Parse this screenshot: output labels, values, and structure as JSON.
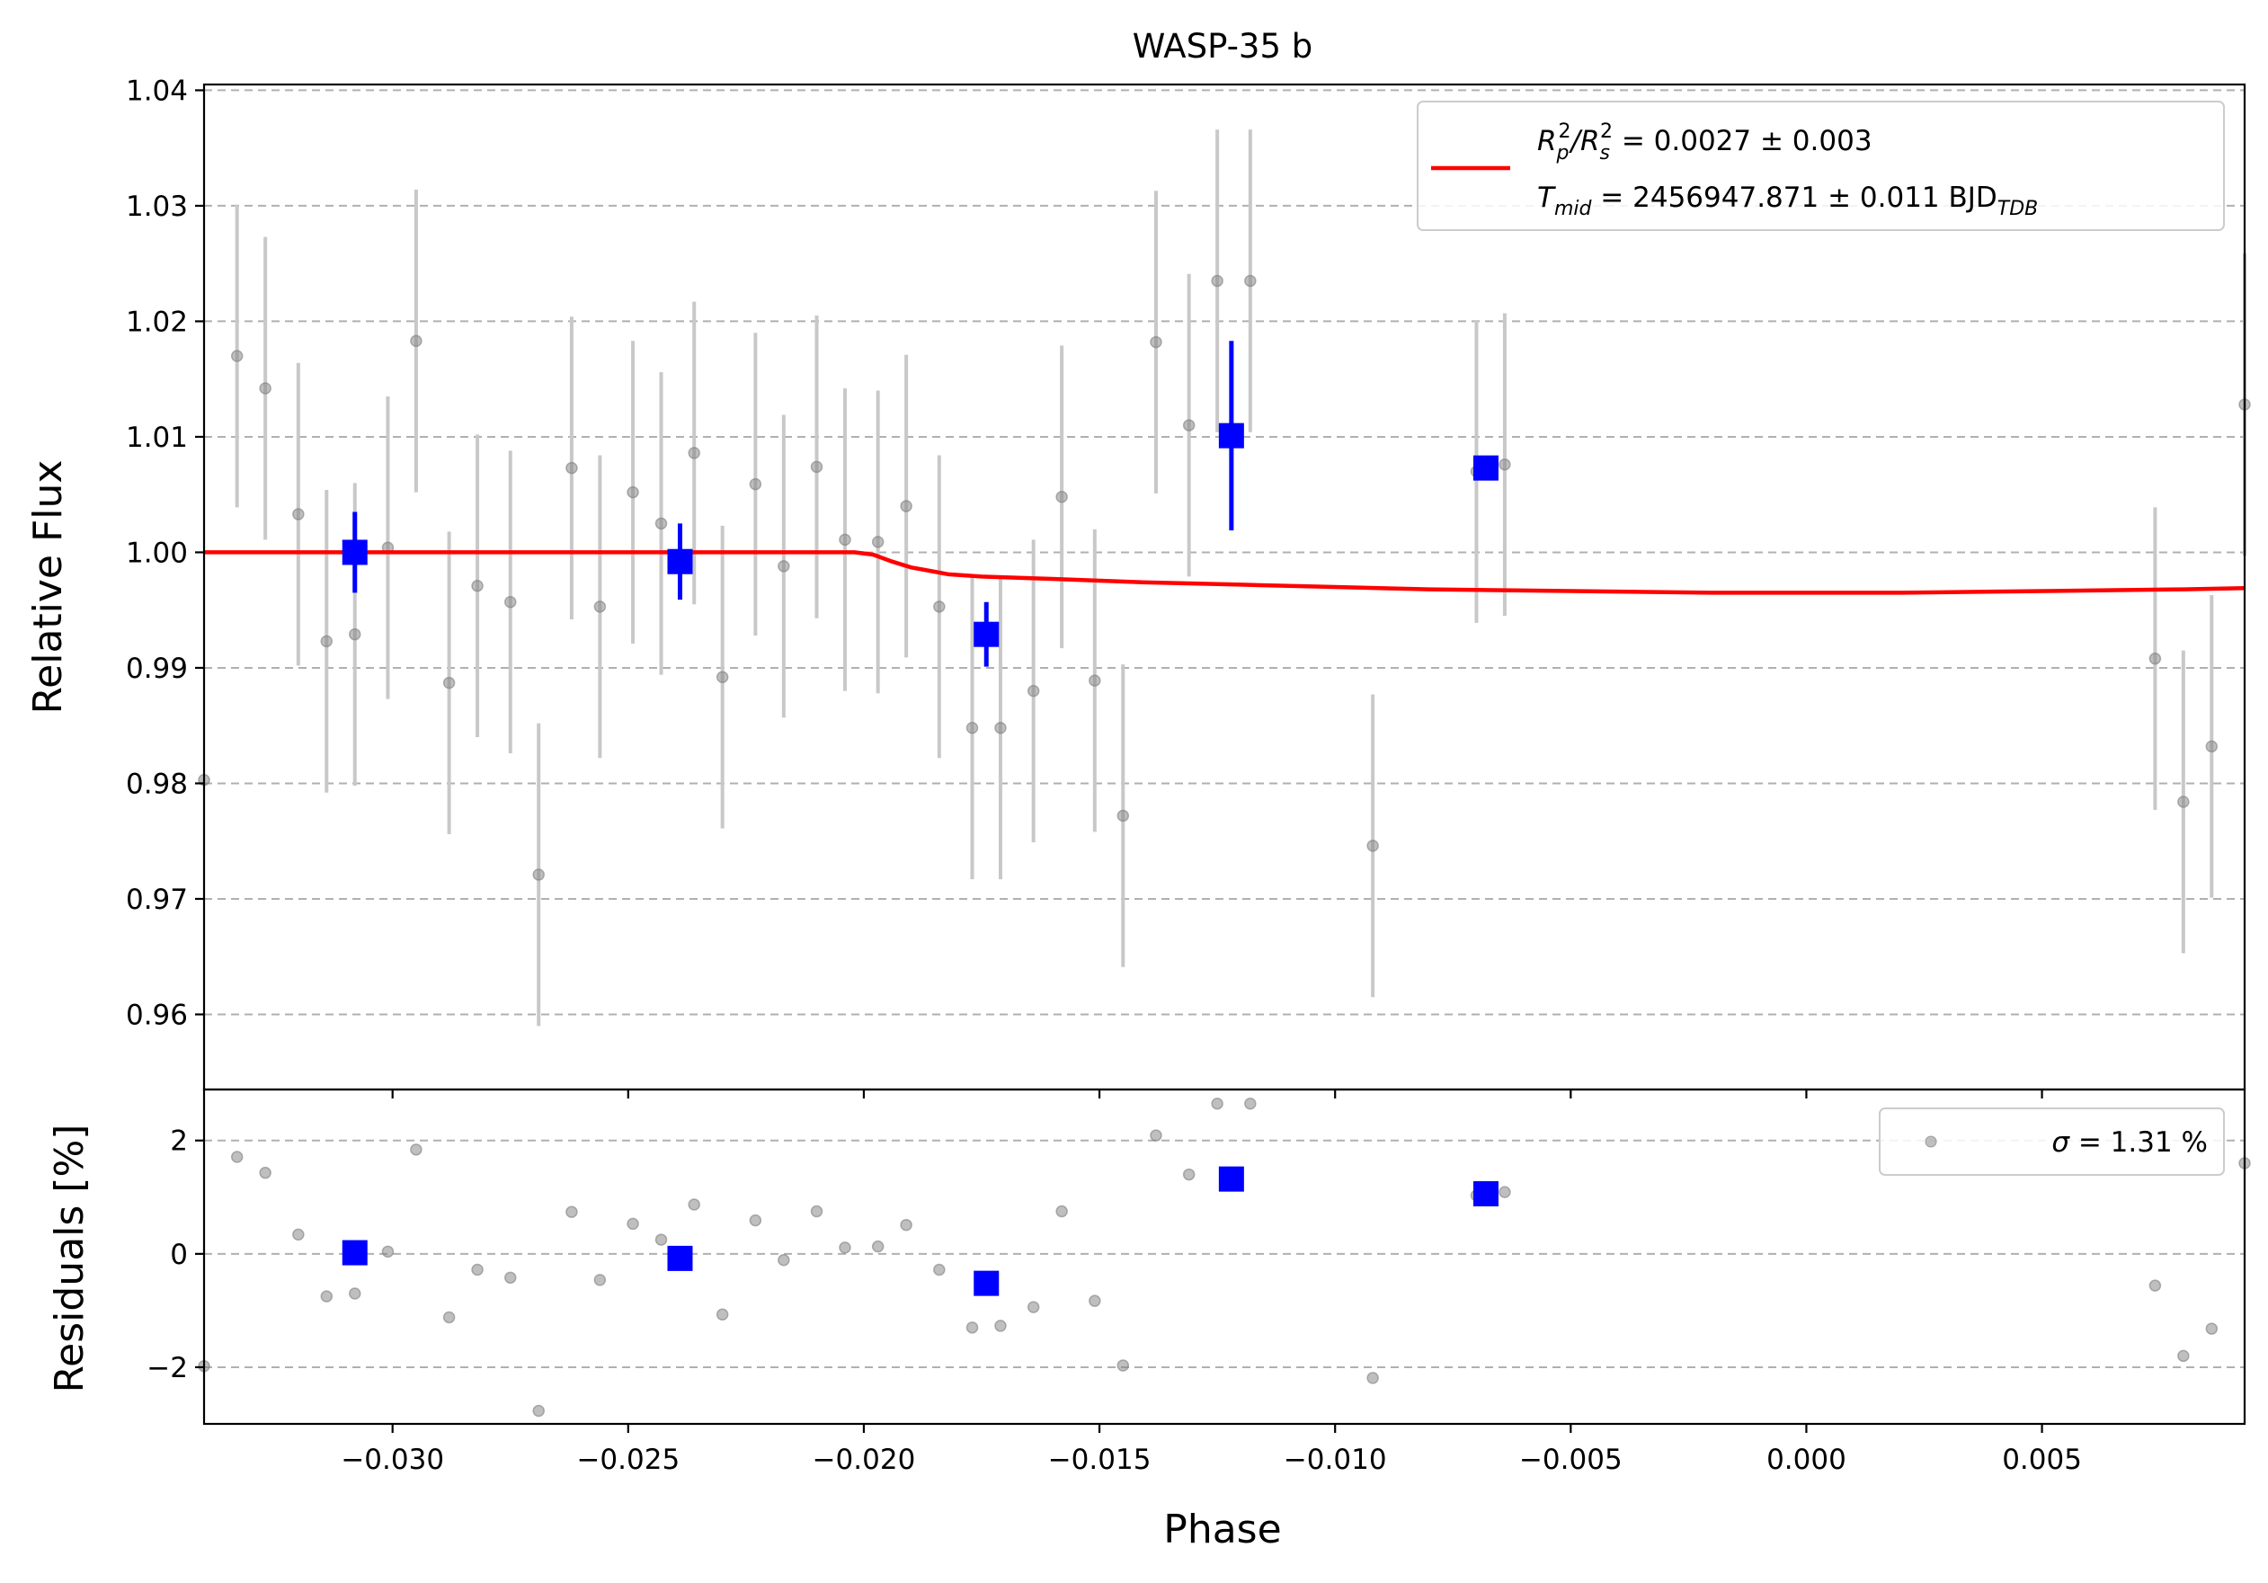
{
  "chart_data": [
    {
      "type": "scatter",
      "title": "WASP-35 b",
      "ylabel": "Relative Flux",
      "xlabel": "",
      "xlim": [
        -0.034,
        0.0093
      ],
      "ylim": [
        0.9535,
        1.0405
      ],
      "xticks": [
        -0.03,
        -0.025,
        -0.02,
        -0.015,
        -0.01,
        -0.005,
        0.0,
        0.005
      ],
      "yticks": [
        0.96,
        0.97,
        0.98,
        0.99,
        1.0,
        1.01,
        1.02,
        1.03,
        1.04
      ],
      "ytick_labels": [
        "0.96",
        "0.97",
        "0.98",
        "0.99",
        "1.00",
        "1.01",
        "1.02",
        "1.03",
        "1.04"
      ],
      "grid": "horizontal dashed",
      "legend_placement": "top-right",
      "legend": {
        "label_line1_lead": "R",
        "label_line1_sub1": "p",
        "label_line1_sup1": "2",
        "label_line1_mid": "/R",
        "label_line1_sub2": "s",
        "label_line1_sup2": "2",
        "label_line1_value": " = 0.0027 ± 0.003",
        "label_line2_lead": "T",
        "label_line2_sub": "mid",
        "label_line2_value": " = 2456947.871 ± 0.011 BJD",
        "label_line2_unit_sub": "TDB"
      },
      "colors": {
        "raw": "#808080",
        "raw_err": "#c8c8c8",
        "binned": "#0000ff",
        "model": "#ff0000"
      },
      "series": [
        {
          "kind": "raw",
          "points": [
            {
              "x": -0.034,
              "y": 0.9803,
              "e": 0.0
            },
            {
              "x": -0.0333,
              "y": 1.017,
              "e": 0.0131
            },
            {
              "x": -0.0327,
              "y": 1.0142,
              "e": 0.0131
            },
            {
              "x": -0.032,
              "y": 1.0033,
              "e": 0.0131
            },
            {
              "x": -0.0314,
              "y": 0.9923,
              "e": 0.0131
            },
            {
              "x": -0.0308,
              "y": 0.9929,
              "e": 0.0131
            },
            {
              "x": -0.0301,
              "y": 1.0004,
              "e": 0.0131
            },
            {
              "x": -0.0295,
              "y": 1.0183,
              "e": 0.0131
            },
            {
              "x": -0.0288,
              "y": 0.9887,
              "e": 0.0131
            },
            {
              "x": -0.0282,
              "y": 0.9971,
              "e": 0.0131
            },
            {
              "x": -0.0275,
              "y": 0.9957,
              "e": 0.0131
            },
            {
              "x": -0.0269,
              "y": 0.9721,
              "e": 0.0131
            },
            {
              "x": -0.0262,
              "y": 1.0073,
              "e": 0.0131
            },
            {
              "x": -0.0256,
              "y": 0.9953,
              "e": 0.0131
            },
            {
              "x": -0.0249,
              "y": 1.0052,
              "e": 0.0131
            },
            {
              "x": -0.0243,
              "y": 1.0025,
              "e": 0.0131
            },
            {
              "x": -0.0236,
              "y": 1.0086,
              "e": 0.0131
            },
            {
              "x": -0.023,
              "y": 0.9892,
              "e": 0.0131
            },
            {
              "x": -0.0223,
              "y": 1.0059,
              "e": 0.0131
            },
            {
              "x": -0.0217,
              "y": 0.9988,
              "e": 0.0131
            },
            {
              "x": -0.021,
              "y": 1.0074,
              "e": 0.0131
            },
            {
              "x": -0.0204,
              "y": 1.0011,
              "e": 0.0131
            },
            {
              "x": -0.0197,
              "y": 1.0009,
              "e": 0.0131
            },
            {
              "x": -0.0191,
              "y": 1.004,
              "e": 0.0131
            },
            {
              "x": -0.0184,
              "y": 0.9953,
              "e": 0.0131
            },
            {
              "x": -0.0177,
              "y": 0.9848,
              "e": 0.0131
            },
            {
              "x": -0.0171,
              "y": 0.9848,
              "e": 0.0131
            },
            {
              "x": -0.0164,
              "y": 0.988,
              "e": 0.0131
            },
            {
              "x": -0.0158,
              "y": 1.0048,
              "e": 0.0131
            },
            {
              "x": -0.0151,
              "y": 0.9889,
              "e": 0.0131
            },
            {
              "x": -0.0145,
              "y": 0.9772,
              "e": 0.0131
            },
            {
              "x": -0.0138,
              "y": 1.0182,
              "e": 0.0131
            },
            {
              "x": -0.0131,
              "y": 1.011,
              "e": 0.0131
            },
            {
              "x": -0.0125,
              "y": 1.0235,
              "e": 0.0131
            },
            {
              "x": -0.0118,
              "y": 1.0235,
              "e": 0.0131
            },
            {
              "x": -0.0092,
              "y": 0.9746,
              "e": 0.0131
            },
            {
              "x": -0.007,
              "y": 1.007,
              "e": 0.0131
            },
            {
              "x": -0.0064,
              "y": 1.0076,
              "e": 0.0131
            },
            {
              "x": 0.0074,
              "y": 0.9908,
              "e": 0.0131
            },
            {
              "x": 0.008,
              "y": 0.9784,
              "e": 0.0131
            },
            {
              "x": 0.0086,
              "y": 0.9832,
              "e": 0.0131
            },
            {
              "x": 0.0093,
              "y": 1.0128,
              "e": 0.0131
            }
          ]
        },
        {
          "kind": "binned",
          "points": [
            {
              "x": -0.0308,
              "y": 1.0,
              "e": 0.0035
            },
            {
              "x": -0.0239,
              "y": 0.9992,
              "e": 0.0033
            },
            {
              "x": -0.0174,
              "y": 0.9929,
              "e": 0.0028
            },
            {
              "x": -0.0122,
              "y": 1.0101,
              "e": 0.0082
            },
            {
              "x": -0.0068,
              "y": 1.0073,
              "e": 0.0
            }
          ]
        },
        {
          "kind": "model",
          "points": [
            [
              -0.034,
              1.0
            ],
            [
              -0.0202,
              1.0
            ],
            [
              -0.0198,
              0.9998
            ],
            [
              -0.0194,
              0.9992
            ],
            [
              -0.019,
              0.9987
            ],
            [
              -0.0186,
              0.9984
            ],
            [
              -0.0182,
              0.9981
            ],
            [
              -0.0175,
              0.9979
            ],
            [
              -0.016,
              0.9977
            ],
            [
              -0.014,
              0.9974
            ],
            [
              -0.012,
              0.9972
            ],
            [
              -0.01,
              0.997
            ],
            [
              -0.008,
              0.9968
            ],
            [
              -0.006,
              0.9967
            ],
            [
              -0.004,
              0.9966
            ],
            [
              -0.002,
              0.9965
            ],
            [
              0.0,
              0.9965
            ],
            [
              0.002,
              0.9965
            ],
            [
              0.004,
              0.9966
            ],
            [
              0.006,
              0.9967
            ],
            [
              0.008,
              0.9968
            ],
            [
              0.0093,
              0.9969
            ]
          ]
        }
      ]
    },
    {
      "type": "scatter",
      "ylabel": "Residuals [%]",
      "xlabel": "Phase",
      "xlim": [
        -0.034,
        0.0093
      ],
      "ylim": [
        -3.0,
        2.9
      ],
      "xticks": [
        -0.03,
        -0.025,
        -0.02,
        -0.015,
        -0.01,
        -0.005,
        0.0,
        0.005
      ],
      "xtick_labels": [
        "−0.030",
        "−0.025",
        "−0.020",
        "−0.015",
        "−0.010",
        "−0.005",
        "0.000",
        "0.005"
      ],
      "yticks": [
        -2,
        0,
        2
      ],
      "ytick_labels": [
        "−2",
        "0",
        "2"
      ],
      "grid": "horizontal dashed",
      "legend_placement": "top-right",
      "legend": {
        "sigma_symbol": "σ",
        "sigma_value": " = 1.31 %"
      },
      "series": [
        {
          "kind": "raw",
          "points": [
            [
              -0.034,
              -1.98
            ],
            [
              -0.0333,
              1.71
            ],
            [
              -0.0327,
              1.43
            ],
            [
              -0.032,
              0.34
            ],
            [
              -0.0314,
              -0.75
            ],
            [
              -0.0308,
              -0.7
            ],
            [
              -0.0301,
              0.04
            ],
            [
              -0.0295,
              1.84
            ],
            [
              -0.0288,
              -1.12
            ],
            [
              -0.0282,
              -0.28
            ],
            [
              -0.0275,
              -0.42
            ],
            [
              -0.0269,
              -2.77
            ],
            [
              -0.0262,
              0.74
            ],
            [
              -0.0256,
              -0.46
            ],
            [
              -0.0249,
              0.53
            ],
            [
              -0.0243,
              0.25
            ],
            [
              -0.0236,
              0.87
            ],
            [
              -0.023,
              -1.07
            ],
            [
              -0.0223,
              0.59
            ],
            [
              -0.0217,
              -0.11
            ],
            [
              -0.021,
              0.75
            ],
            [
              -0.0204,
              0.11
            ],
            [
              -0.0197,
              0.13
            ],
            [
              -0.0191,
              0.51
            ],
            [
              -0.0184,
              -0.28
            ],
            [
              -0.0177,
              -1.3
            ],
            [
              -0.0171,
              -1.27
            ],
            [
              -0.0164,
              -0.94
            ],
            [
              -0.0158,
              0.75
            ],
            [
              -0.0151,
              -0.83
            ],
            [
              -0.0145,
              -1.97
            ],
            [
              -0.0138,
              2.09
            ],
            [
              -0.0131,
              1.4
            ],
            [
              -0.0125,
              2.65
            ],
            [
              -0.0118,
              2.65
            ],
            [
              -0.0092,
              -2.19
            ],
            [
              -0.007,
              1.03
            ],
            [
              -0.0064,
              1.09
            ],
            [
              0.0074,
              -0.56
            ],
            [
              0.008,
              -1.8
            ],
            [
              0.0086,
              -1.32
            ],
            [
              0.0093,
              1.6
            ]
          ]
        },
        {
          "kind": "binned",
          "points": [
            [
              -0.0308,
              0.02
            ],
            [
              -0.0239,
              -0.08
            ],
            [
              -0.0174,
              -0.52
            ],
            [
              -0.0122,
              1.32
            ],
            [
              -0.0068,
              1.06
            ]
          ]
        }
      ]
    }
  ]
}
